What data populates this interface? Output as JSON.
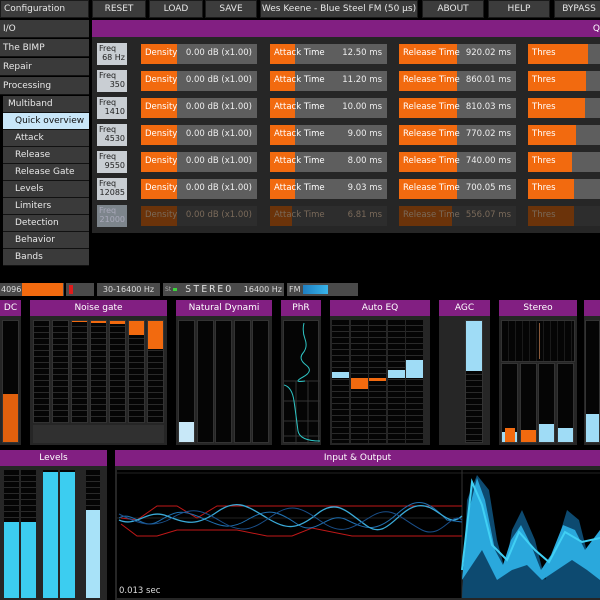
{
  "topbar": {
    "reset": "RESET",
    "load": "LOAD",
    "save": "SAVE",
    "preset": "Wes Keene - Blue Steel FM (50 µs)",
    "about": "ABOUT",
    "help": "HELP",
    "bypass": "BYPASS"
  },
  "sidebar": {
    "configuration": "Configuration",
    "io": "I/O",
    "bimp": "The BIMP",
    "repair": "Repair",
    "processing": "Processing",
    "multiband": "Multiband",
    "items": [
      "Quick overview",
      "Attack",
      "Release",
      "Release Gate",
      "Levels",
      "Limiters",
      "Detection",
      "Behavior",
      "Bands"
    ],
    "active": "Quick overview"
  },
  "overview": {
    "title": "Q",
    "bands": [
      {
        "freq_label": "Freq",
        "freq": "68 Hz",
        "density": "0.00 dB (x1.00)",
        "attack": "12.50 ms",
        "release": "920.02 ms",
        "thres_fill": 70,
        "dim": false
      },
      {
        "freq_label": "Freq",
        "freq": "350",
        "density": "0.00 dB (x1.00)",
        "attack": "11.20 ms",
        "release": "860.01 ms",
        "thres_fill": 68,
        "dim": false
      },
      {
        "freq_label": "Freq",
        "freq": "1410",
        "density": "0.00 dB (x1.00)",
        "attack": "10.00 ms",
        "release": "810.03 ms",
        "thres_fill": 67,
        "dim": false
      },
      {
        "freq_label": "Freq",
        "freq": "4530",
        "density": "0.00 dB (x1.00)",
        "attack": "9.00 ms",
        "release": "770.02 ms",
        "thres_fill": 56,
        "dim": false
      },
      {
        "freq_label": "Freq",
        "freq": "9550",
        "density": "0.00 dB (x1.00)",
        "attack": "8.00 ms",
        "release": "740.00 ms",
        "thres_fill": 52,
        "dim": false
      },
      {
        "freq_label": "Freq",
        "freq": "12085",
        "density": "0.00 dB (x1.00)",
        "attack": "9.03 ms",
        "release": "700.05 ms",
        "thres_fill": 54,
        "dim": false
      },
      {
        "freq_label": "Freq",
        "freq": "21000",
        "density": "0.00 dB (x1.00)",
        "attack": "6.81 ms",
        "release": "556.07 ms",
        "thres_fill": 54,
        "dim": true
      }
    ],
    "labels": {
      "density": "Density",
      "attack": "Attack Time",
      "release": "Release Time",
      "thres": "Thres"
    }
  },
  "status": {
    "fft": "4096",
    "range": "30-16400 Hz",
    "stereo": "STEREO",
    "bandwidth": "16400 Hz",
    "fm": "FM"
  },
  "panels": {
    "dc": "DC",
    "noise_gate": "Noise gate",
    "natural": "Natural Dynami",
    "phr": "PhR",
    "auto_eq": "Auto EQ",
    "agc": "AGC",
    "stereo": "Stereo",
    "levels": "Levels",
    "io": "Input & Output",
    "io_time": "0.013 sec"
  },
  "colors": {
    "accent": "#f26a0f",
    "purple": "#821f82",
    "meter_blue": "#9fdcf6",
    "cyan": "#38c8ee"
  }
}
